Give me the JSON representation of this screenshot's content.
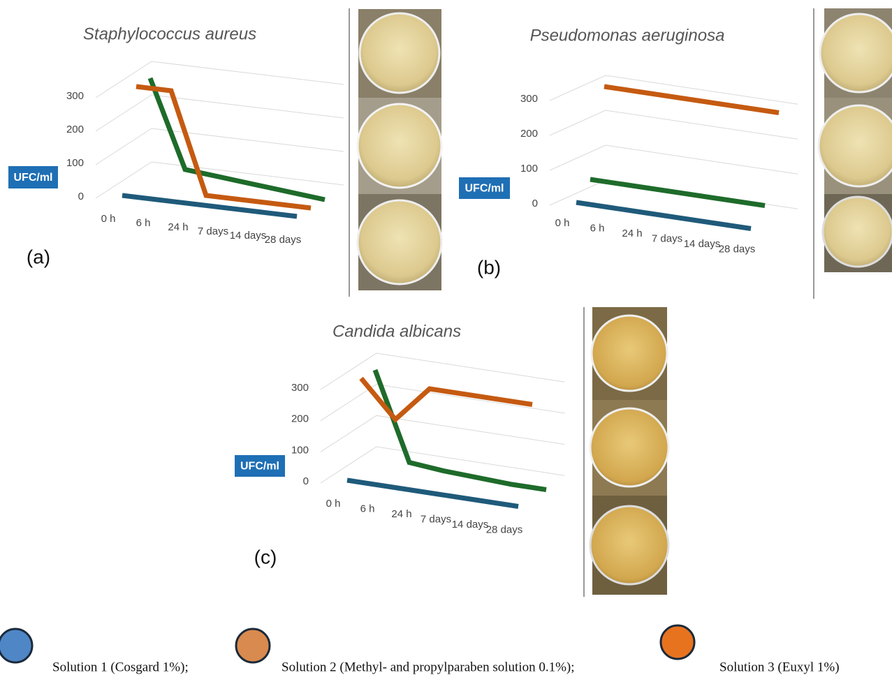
{
  "chart_data": [
    {
      "type": "line",
      "title": "Staphylococcus aureus",
      "panel_label": "(a)",
      "ylabel": "UFC/ml",
      "categories": [
        "0 h",
        "6 h",
        "24 h",
        "7 days",
        "14 days",
        "28 days"
      ],
      "ylim": [
        0,
        300
      ],
      "yticks": [
        0,
        100,
        200,
        300
      ],
      "grid": true,
      "series": [
        {
          "color": "#1f5a7a",
          "values": [
            0,
            0,
            0,
            0,
            0,
            0
          ]
        },
        {
          "color": "#c55a11",
          "values": [
            300,
            300,
            0,
            0,
            0,
            0
          ]
        },
        {
          "color": "#1e6b2a",
          "values": [
            300,
            40,
            30,
            20,
            10,
            0
          ]
        }
      ]
    },
    {
      "type": "line",
      "title": "Pseudomonas aeruginosa",
      "panel_label": "(b)",
      "ylabel": "UFC/ml",
      "categories": [
        "0 h",
        "6 h",
        "24 h",
        "7 days",
        "14 days",
        "28 days"
      ],
      "ylim": [
        0,
        300
      ],
      "yticks": [
        0,
        100,
        200,
        300
      ],
      "grid": true,
      "series": [
        {
          "color": "#1f5a7a",
          "values": [
            0,
            0,
            0,
            0,
            0,
            0
          ]
        },
        {
          "color": "#1e6b2a",
          "values": [
            50,
            50,
            50,
            50,
            50,
            50
          ]
        },
        {
          "color": "#c55a11",
          "values": [
            300,
            300,
            300,
            300,
            300,
            300
          ]
        }
      ]
    },
    {
      "type": "line",
      "title": "Candida albicans",
      "panel_label": "(c)",
      "ylabel": "UFC/ml",
      "categories": [
        "0 h",
        "6 h",
        "24 h",
        "7 days",
        "14 days",
        "28 days"
      ],
      "ylim": [
        0,
        300
      ],
      "yticks": [
        0,
        100,
        200,
        300
      ],
      "grid": true,
      "series": [
        {
          "color": "#1f5a7a",
          "values": [
            0,
            0,
            0,
            0,
            0,
            0
          ]
        },
        {
          "color": "#c55a11",
          "values": [
            300,
            185,
            300,
            300,
            300,
            300
          ]
        },
        {
          "color": "#1e6b2a",
          "values": [
            300,
            20,
            10,
            5,
            0,
            0
          ]
        }
      ]
    }
  ],
  "legend": [
    {
      "label": "Solution 1 (Cosgard 1%);",
      "color": "#4f86c6"
    },
    {
      "label": "Solution 2 (Methyl- and propylparaben solution 0.1%);",
      "color": "#d98a4e"
    },
    {
      "label": "Solution 3 (Euxyl 1%)",
      "color": "#e8731f"
    }
  ]
}
